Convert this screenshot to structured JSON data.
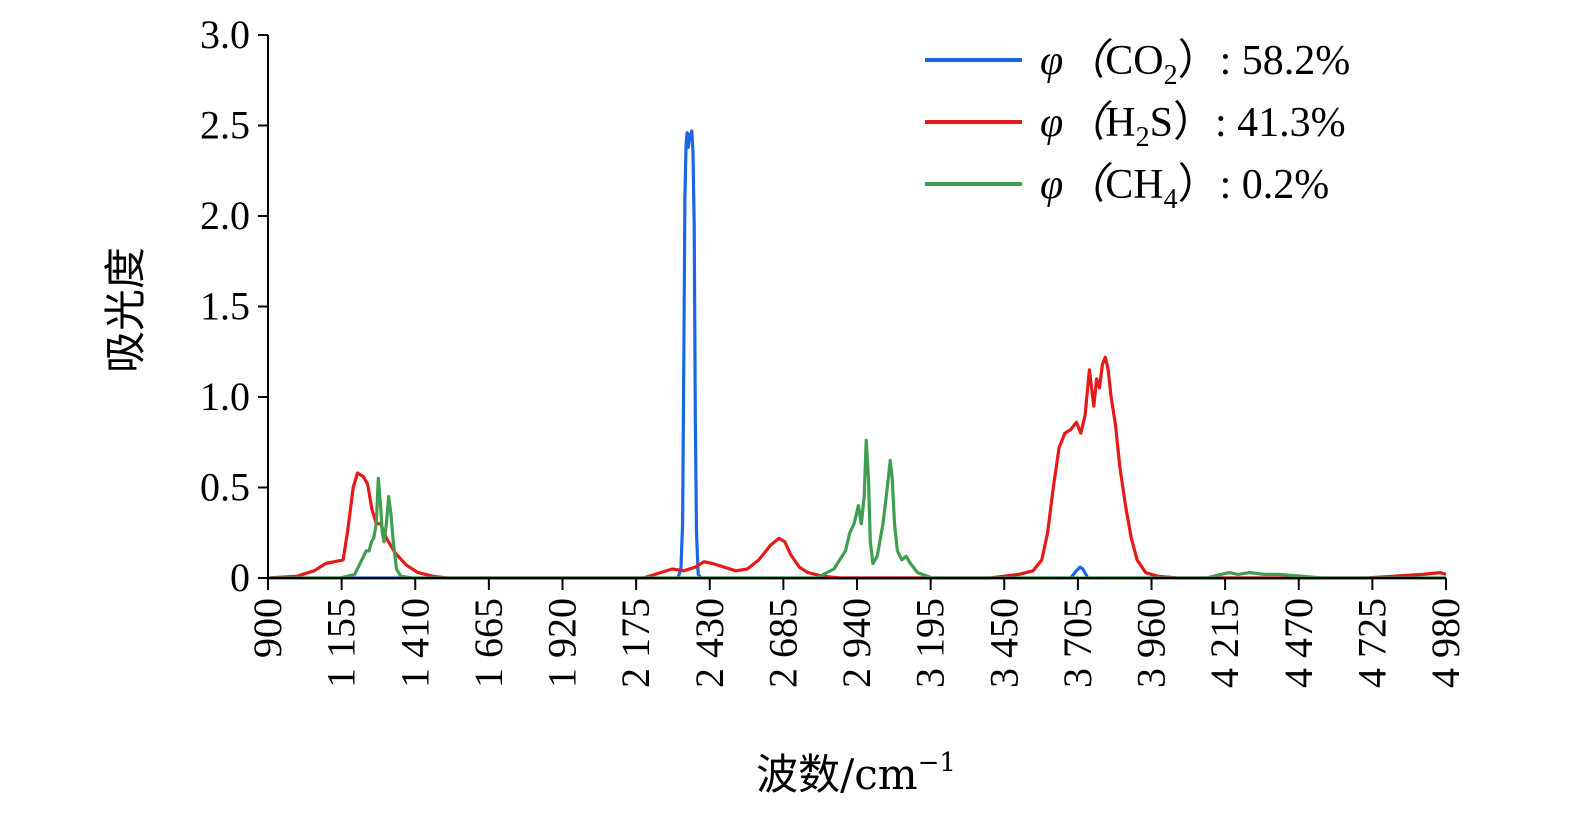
{
  "chart_data": {
    "type": "line",
    "xlabel": "波数/cm",
    "xlabel_sup": "−1",
    "ylabel": "吸光度",
    "xlim": [
      900,
      4980
    ],
    "ylim": [
      0,
      3.0
    ],
    "x_ticks": [
      900,
      1155,
      1410,
      1665,
      1920,
      2175,
      2430,
      2685,
      2940,
      3195,
      3450,
      3705,
      3960,
      4215,
      4470,
      4725,
      4980
    ],
    "x_tick_labels": [
      "900",
      "1 155",
      "1 410",
      "1 665",
      "1 920",
      "2 175",
      "2 430",
      "2 685",
      "2 940",
      "3 195",
      "3 450",
      "3 705",
      "3 960",
      "4 215",
      "4 470",
      "4 725",
      "4 980"
    ],
    "y_ticks": [
      0,
      0.5,
      1.0,
      1.5,
      2.0,
      2.5,
      3.0
    ],
    "y_tick_labels": [
      "0",
      "0.5",
      "1.0",
      "1.5",
      "2.0",
      "2.5",
      "3.0"
    ],
    "legend_position": "top-right",
    "series": [
      {
        "name": "CO2",
        "legend": {
          "prefix": "φ（",
          "base": "CO",
          "sub": "2",
          "suffix": "）: 58.2%"
        },
        "color": "#1a66e6",
        "x": [
          900,
          1200,
          2320,
          2330,
          2336,
          2340,
          2344,
          2348,
          2352,
          2356,
          2360,
          2364,
          2368,
          2372,
          2376,
          2380,
          2384,
          2390,
          2400,
          2600,
          3680,
          3700,
          3712,
          3722,
          3740,
          4980
        ],
        "y": [
          0,
          0,
          0,
          0.05,
          0.3,
          1.2,
          2.1,
          2.4,
          2.46,
          2.38,
          2.45,
          2.44,
          2.47,
          2.35,
          1.95,
          0.9,
          0.25,
          0.02,
          0,
          0,
          0,
          0.04,
          0.06,
          0.05,
          0,
          0
        ]
      },
      {
        "name": "H2S",
        "legend": {
          "prefix": "φ（",
          "base": "H",
          "sub": "2",
          "base2": "S",
          "suffix": "）: 41.3%"
        },
        "color": "#e61919",
        "x": [
          900,
          1000,
          1060,
          1100,
          1130,
          1160,
          1175,
          1195,
          1210,
          1230,
          1245,
          1260,
          1275,
          1290,
          1310,
          1340,
          1380,
          1420,
          1470,
          1520,
          1600,
          2200,
          2260,
          2300,
          2340,
          2380,
          2410,
          2440,
          2480,
          2520,
          2560,
          2600,
          2640,
          2670,
          2690,
          2710,
          2740,
          2770,
          2820,
          2880,
          3000,
          3400,
          3500,
          3550,
          3580,
          3600,
          3620,
          3640,
          3660,
          3680,
          3700,
          3715,
          3730,
          3745,
          3760,
          3770,
          3780,
          3790,
          3800,
          3810,
          3820,
          3835,
          3850,
          3870,
          3890,
          3910,
          3940,
          3980,
          4050,
          4200,
          4700,
          4800,
          4900,
          4960,
          4980
        ],
        "y": [
          0,
          0.01,
          0.04,
          0.08,
          0.09,
          0.1,
          0.25,
          0.5,
          0.58,
          0.56,
          0.52,
          0.38,
          0.3,
          0.3,
          0.22,
          0.14,
          0.07,
          0.03,
          0.01,
          0,
          0,
          0,
          0.03,
          0.05,
          0.04,
          0.06,
          0.09,
          0.08,
          0.06,
          0.04,
          0.05,
          0.1,
          0.18,
          0.22,
          0.2,
          0.13,
          0.06,
          0.03,
          0.01,
          0,
          0,
          0,
          0.02,
          0.04,
          0.1,
          0.25,
          0.5,
          0.72,
          0.8,
          0.82,
          0.86,
          0.8,
          0.9,
          1.15,
          0.95,
          1.1,
          1.05,
          1.18,
          1.22,
          1.15,
          1.0,
          0.85,
          0.62,
          0.4,
          0.22,
          0.1,
          0.03,
          0.01,
          0,
          0,
          0,
          0.01,
          0.02,
          0.03,
          0.02
        ]
      },
      {
        "name": "CH4",
        "legend": {
          "prefix": "φ（",
          "base": "CH",
          "sub": "4",
          "suffix": "）:  0.2%"
        },
        "color": "#3f9e4f",
        "x": [
          900,
          1150,
          1200,
          1225,
          1240,
          1250,
          1258,
          1266,
          1275,
          1282,
          1290,
          1296,
          1302,
          1310,
          1318,
          1326,
          1334,
          1345,
          1360,
          1400,
          1500,
          2800,
          2860,
          2900,
          2915,
          2930,
          2945,
          2955,
          2965,
          2972,
          2980,
          2986,
          2995,
          3010,
          3030,
          3045,
          3055,
          3062,
          3070,
          3080,
          3095,
          3110,
          3125,
          3150,
          3200,
          4150,
          4200,
          4230,
          4260,
          4300,
          4350,
          4400,
          4480,
          4550,
          4980
        ],
        "y": [
          0,
          0,
          0.02,
          0.1,
          0.15,
          0.15,
          0.2,
          0.22,
          0.3,
          0.55,
          0.4,
          0.25,
          0.2,
          0.3,
          0.45,
          0.35,
          0.2,
          0.05,
          0.01,
          0,
          0,
          0,
          0.05,
          0.15,
          0.25,
          0.3,
          0.4,
          0.3,
          0.45,
          0.76,
          0.55,
          0.2,
          0.08,
          0.12,
          0.3,
          0.5,
          0.65,
          0.55,
          0.3,
          0.15,
          0.1,
          0.12,
          0.08,
          0.03,
          0,
          0,
          0.02,
          0.03,
          0.02,
          0.03,
          0.02,
          0.02,
          0.01,
          0,
          0
        ]
      }
    ]
  }
}
